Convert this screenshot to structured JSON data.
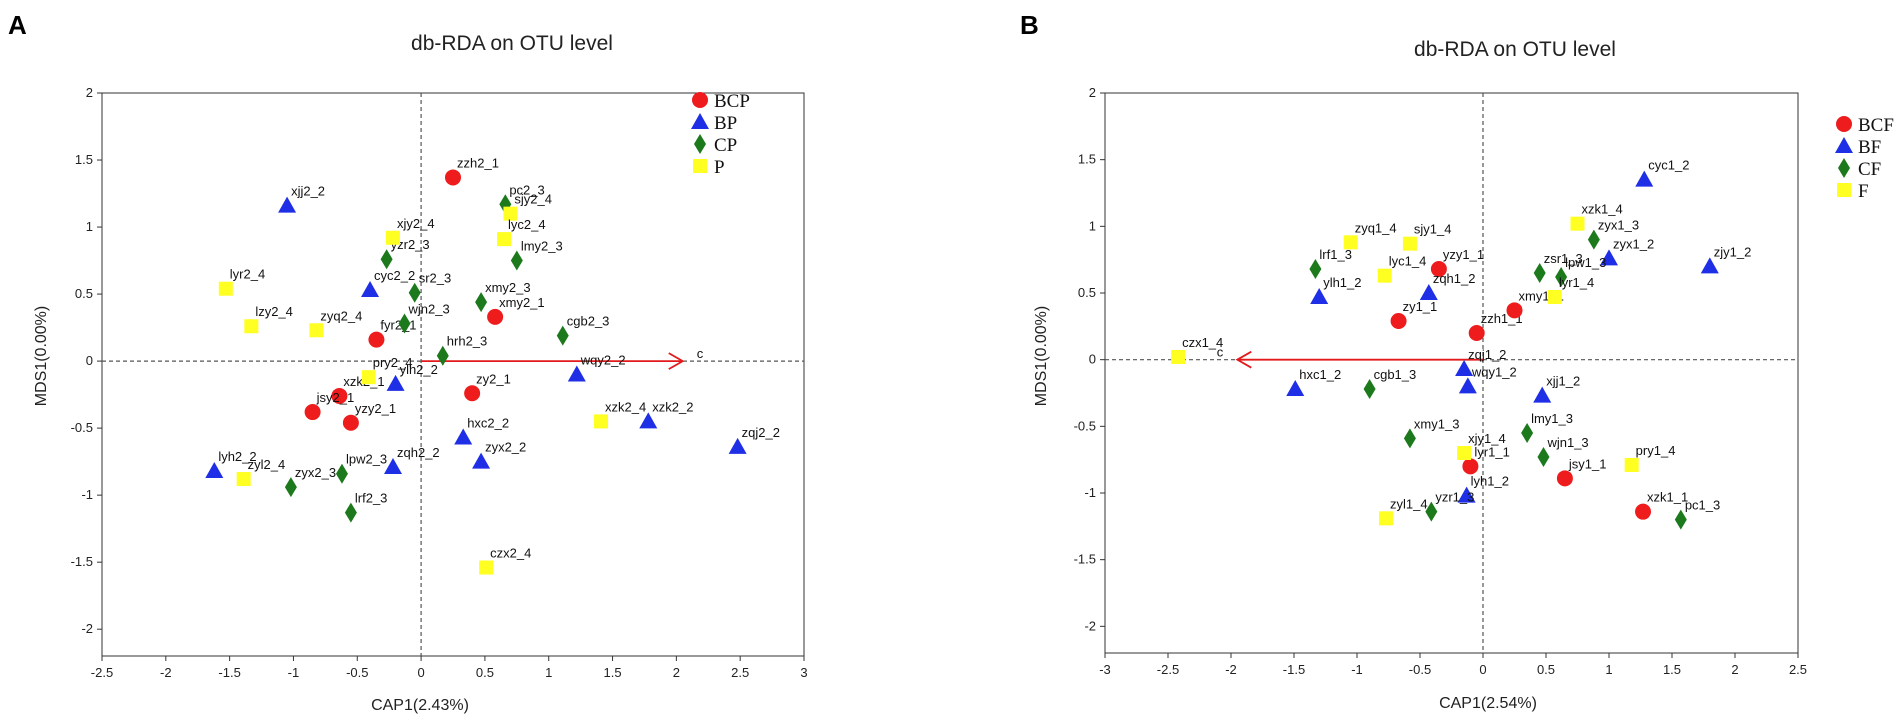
{
  "colors": {
    "red": "#ee1c1c",
    "blue": "#1f2fe6",
    "green": "#1c7a1c",
    "yellow": "#ffff22",
    "arrow": "#e31a1c"
  },
  "chart_data": [
    {
      "panel": "A",
      "type": "scatter",
      "title": "db-RDA on OTU level",
      "xlabel": "CAP1(2.43%)",
      "ylabel": "MDS1(0.00%)",
      "xlim": [
        -2.5,
        3
      ],
      "ylim": [
        -2.2,
        2
      ],
      "xticks": [
        "-2.5",
        "-2",
        "-1.5",
        "-1",
        "-0.5",
        "0",
        "0.5",
        "1",
        "1.5",
        "2",
        "2.5",
        "3"
      ],
      "yticks": [
        "2",
        "1.5",
        "1",
        "0.5",
        "0",
        "-0.5",
        "-1",
        "-1.5",
        "-2"
      ],
      "arrow": {
        "label": "c",
        "x": 2.05,
        "y": 0
      },
      "legend": [
        {
          "name": "BCP",
          "marker": "circle",
          "color": "#ee1c1c"
        },
        {
          "name": "BP",
          "marker": "triangle",
          "color": "#1f2fe6"
        },
        {
          "name": "CP",
          "marker": "diamond",
          "color": "#1c7a1c"
        },
        {
          "name": "P",
          "marker": "square",
          "color": "#ffff22"
        }
      ],
      "series": [
        {
          "name": "BCP",
          "points": [
            {
              "label": "zzh2_1",
              "x": 0.25,
              "y": 1.37
            },
            {
              "label": "xmy2_1",
              "x": 0.58,
              "y": 0.33
            },
            {
              "label": "fyr2_1",
              "x": -0.35,
              "y": 0.16
            },
            {
              "label": "xzk2_1",
              "x": -0.64,
              "y": -0.26
            },
            {
              "label": "jsy2_1",
              "x": -0.85,
              "y": -0.38
            },
            {
              "label": "yzy2_1",
              "x": -0.55,
              "y": -0.46
            },
            {
              "label": "zy2_1",
              "x": 0.4,
              "y": -0.24
            }
          ]
        },
        {
          "name": "BP",
          "points": [
            {
              "label": "xjj2_2",
              "x": -1.05,
              "y": 1.16
            },
            {
              "label": "cyc2_2",
              "x": -0.4,
              "y": 0.53
            },
            {
              "label": "ylh2_2",
              "x": -0.2,
              "y": -0.17
            },
            {
              "label": "wqy2_2",
              "x": 1.22,
              "y": -0.1
            },
            {
              "label": "xzk2_2",
              "x": 1.78,
              "y": -0.45
            },
            {
              "label": "zqj2_2",
              "x": 2.48,
              "y": -0.64
            },
            {
              "label": "hxc2_2",
              "x": 0.33,
              "y": -0.57
            },
            {
              "label": "zyx2_2",
              "x": 0.47,
              "y": -0.75
            },
            {
              "label": "zqh2_2",
              "x": -0.22,
              "y": -0.79
            },
            {
              "label": "lyh2_2",
              "x": -1.62,
              "y": -0.82
            }
          ]
        },
        {
          "name": "CP",
          "points": [
            {
              "label": "pc2_3",
              "x": 0.66,
              "y": 1.17
            },
            {
              "label": "lmy2_3",
              "x": 0.75,
              "y": 0.75
            },
            {
              "label": "yzr2_3",
              "x": -0.27,
              "y": 0.76
            },
            {
              "label": "sr2_3",
              "x": -0.05,
              "y": 0.51
            },
            {
              "label": "xmy2_3",
              "x": 0.47,
              "y": 0.44
            },
            {
              "label": "wjn2_3",
              "x": -0.13,
              "y": 0.28
            },
            {
              "label": "cgb2_3",
              "x": 1.11,
              "y": 0.19
            },
            {
              "label": "hrh2_3",
              "x": 0.17,
              "y": 0.04
            },
            {
              "label": "lpw2_3",
              "x": -0.62,
              "y": -0.84
            },
            {
              "label": "zyx2_3",
              "x": -1.02,
              "y": -0.94
            },
            {
              "label": "lrf2_3",
              "x": -0.55,
              "y": -1.13
            }
          ]
        },
        {
          "name": "P",
          "points": [
            {
              "label": "sjy2_4",
              "x": 0.7,
              "y": 1.1
            },
            {
              "label": "xjy2_4",
              "x": -0.22,
              "y": 0.92
            },
            {
              "label": "lyc2_4",
              "x": 0.65,
              "y": 0.91
            },
            {
              "label": "lyr2_4",
              "x": -1.53,
              "y": 0.54
            },
            {
              "label": "lzy2_4",
              "x": -1.33,
              "y": 0.26
            },
            {
              "label": "zyq2_4",
              "x": -0.82,
              "y": 0.23
            },
            {
              "label": "pry2_4",
              "x": -0.41,
              "y": -0.12
            },
            {
              "label": "czx2_4",
              "x": 0.51,
              "y": -1.54
            },
            {
              "label": "zyl2_4",
              "x": -1.39,
              "y": -0.88
            },
            {
              "label": "xzk2_4",
              "x": 1.41,
              "y": -0.45
            }
          ]
        }
      ]
    },
    {
      "panel": "B",
      "type": "scatter",
      "title": "db-RDA on OTU level",
      "xlabel": "CAP1(2.54%)",
      "ylabel": "MDS1(0.00%)",
      "xlim": [
        -3,
        2.5
      ],
      "ylim": [
        -2.2,
        2
      ],
      "xticks": [
        "-3",
        "-2.5",
        "-2",
        "-1.5",
        "-1",
        "-0.5",
        "0",
        "0.5",
        "1",
        "1.5",
        "2",
        "2.5"
      ],
      "yticks": [
        "2",
        "1.5",
        "1",
        "0.5",
        "0",
        "-0.5",
        "-1",
        "-1.5",
        "-2"
      ],
      "arrow": {
        "label": "c",
        "x": -1.95,
        "y": 0
      },
      "legend": [
        {
          "name": "BCF",
          "marker": "circle",
          "color": "#ee1c1c"
        },
        {
          "name": "BF",
          "marker": "triangle",
          "color": "#1f2fe6"
        },
        {
          "name": "CF",
          "marker": "diamond",
          "color": "#1c7a1c"
        },
        {
          "name": "F",
          "marker": "square",
          "color": "#ffff22"
        }
      ],
      "series": [
        {
          "name": "BCF",
          "points": [
            {
              "label": "yzy1_1",
              "x": -0.35,
              "y": 0.68
            },
            {
              "label": "zy1_1",
              "x": -0.67,
              "y": 0.29
            },
            {
              "label": "zzh1_1",
              "x": -0.05,
              "y": 0.2
            },
            {
              "label": "xmy1_1",
              "x": 0.25,
              "y": 0.37
            },
            {
              "label": "lyr1_1",
              "x": -0.1,
              "y": -0.8
            },
            {
              "label": "jsy1_1",
              "x": 0.65,
              "y": -0.89
            },
            {
              "label": "xzk1_1",
              "x": 1.27,
              "y": -1.14
            }
          ]
        },
        {
          "name": "BF",
          "points": [
            {
              "label": "cyc1_2",
              "x": 1.28,
              "y": 1.35
            },
            {
              "label": "zjy1_2",
              "x": 1.8,
              "y": 0.7
            },
            {
              "label": "zyx1_2",
              "x": 1.0,
              "y": 0.76
            },
            {
              "label": "zqh1_2",
              "x": -0.43,
              "y": 0.5
            },
            {
              "label": "ylh1_2",
              "x": -1.3,
              "y": 0.47
            },
            {
              "label": "zqj1_2",
              "x": -0.15,
              "y": -0.07
            },
            {
              "label": "wqy1_2",
              "x": -0.12,
              "y": -0.2
            },
            {
              "label": "xjj1_2",
              "x": 0.47,
              "y": -0.27
            },
            {
              "label": "hxc1_2",
              "x": -1.49,
              "y": -0.22
            },
            {
              "label": "lyh1_2",
              "x": -0.13,
              "y": -1.02
            }
          ]
        },
        {
          "name": "CF",
          "points": [
            {
              "label": "zyx1_3",
              "x": 0.88,
              "y": 0.9
            },
            {
              "label": "lpw1_3",
              "x": 0.62,
              "y": 0.62
            },
            {
              "label": "zsr1_3",
              "x": 0.45,
              "y": 0.65
            },
            {
              "label": "lrf1_3",
              "x": -1.33,
              "y": 0.68
            },
            {
              "label": "cgb1_3",
              "x": -0.9,
              "y": -0.22
            },
            {
              "label": "xmy1_3",
              "x": -0.58,
              "y": -0.59
            },
            {
              "label": "lmy1_3",
              "x": 0.35,
              "y": -0.55
            },
            {
              "label": "wjn1_3",
              "x": 0.48,
              "y": -0.73
            },
            {
              "label": "yzr1_3",
              "x": -0.41,
              "y": -1.14
            },
            {
              "label": "pc1_3",
              "x": 1.57,
              "y": -1.2
            }
          ]
        },
        {
          "name": "F",
          "points": [
            {
              "label": "zyq1_4",
              "x": -1.05,
              "y": 0.88
            },
            {
              "label": "sjy1_4",
              "x": -0.58,
              "y": 0.87
            },
            {
              "label": "lyc1_4",
              "x": -0.78,
              "y": 0.63
            },
            {
              "label": "xzk1_4",
              "x": 0.75,
              "y": 1.02
            },
            {
              "label": "lyr1_4",
              "x": 0.57,
              "y": 0.47
            },
            {
              "label": "czx1_4",
              "x": -2.42,
              "y": 0.02
            },
            {
              "label": "xjy1_4",
              "x": -0.15,
              "y": -0.7
            },
            {
              "label": "pry1_4",
              "x": 1.18,
              "y": -0.79
            },
            {
              "label": "zyl1_4",
              "x": -0.77,
              "y": -1.19
            }
          ]
        }
      ]
    }
  ]
}
